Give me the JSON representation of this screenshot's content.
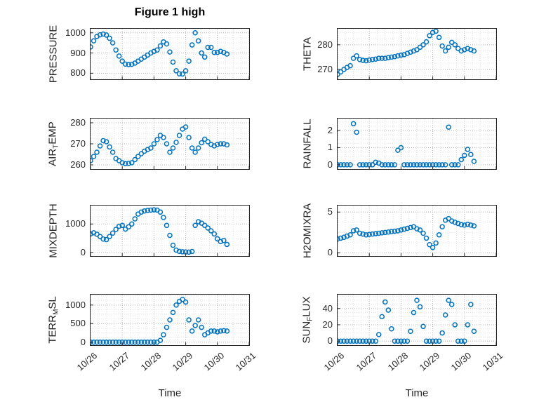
{
  "figure": {
    "title": "Figure 1 high",
    "xlabel": "Time"
  },
  "style": {
    "marker_color": "#0072BD",
    "axis_color": "#262626",
    "grid_major_color": "#b5b5b5",
    "grid_minor_color": "#e2e2e2",
    "background": "#ffffff"
  },
  "axes": {
    "xlim": [
      0,
      5
    ],
    "x_tick_values": [
      0,
      1,
      2,
      3,
      4,
      5
    ],
    "x_ticks": [
      "10/26",
      "10/27",
      "10/28",
      "10/29",
      "10/30",
      "10/31"
    ],
    "x_base": [
      0,
      0.1,
      0.2,
      0.3,
      0.4,
      0.5,
      0.6,
      0.7,
      0.8,
      0.9,
      1.0,
      1.1,
      1.2,
      1.3,
      1.4,
      1.5,
      1.6,
      1.7,
      1.8,
      1.9,
      2.0,
      2.1,
      2.2,
      2.3,
      2.4,
      2.5,
      2.6,
      2.7,
      2.8,
      2.9,
      3.0,
      3.1,
      3.2,
      3.3,
      3.4,
      3.5,
      3.6,
      3.7,
      3.8,
      3.9,
      4.0,
      4.1,
      4.2,
      4.3
    ]
  },
  "chart_data": [
    {
      "type": "scatter",
      "name": "PRESSURE",
      "label_parts": [
        {
          "text": "PRESSURE"
        }
      ],
      "row": 0,
      "col": 0,
      "yticks": [
        800,
        900,
        1000
      ],
      "ylim": [
        770,
        1020
      ],
      "y": [
        930,
        960,
        982,
        990,
        994,
        989,
        973,
        950,
        915,
        885,
        860,
        845,
        843,
        844,
        850,
        860,
        870,
        880,
        890,
        900,
        908,
        915,
        935,
        955,
        945,
        905,
        855,
        812,
        797,
        796,
        812,
        860,
        940,
        1000,
        960,
        900,
        880,
        928,
        928,
        903,
        903,
        908,
        903,
        895
      ]
    },
    {
      "type": "scatter",
      "name": "THETA",
      "label_parts": [
        {
          "text": "THETA"
        }
      ],
      "row": 0,
      "col": 1,
      "yticks": [
        270,
        280
      ],
      "ylim": [
        266,
        286.5
      ],
      "y": [
        268,
        269,
        270,
        270.8,
        271.5,
        274.5,
        275.5,
        274,
        273.7,
        273.5,
        273.8,
        274,
        274.2,
        274.5,
        274.5,
        274.5,
        274.8,
        275,
        275.2,
        275.5,
        275.8,
        276,
        276.5,
        277,
        277.5,
        278,
        279,
        280,
        281.2,
        283.7,
        285,
        285.5,
        283,
        279.5,
        277.5,
        279,
        281,
        280,
        278.5,
        277.5,
        278,
        278.5,
        278,
        277.5
      ]
    },
    {
      "type": "scatter",
      "name": "AIR_TEMP",
      "label_parts": [
        {
          "text": "AIR"
        },
        {
          "text": "T",
          "sub": true
        },
        {
          "text": "EMP"
        }
      ],
      "row": 1,
      "col": 0,
      "yticks": [
        260,
        270,
        280
      ],
      "ylim": [
        258,
        282
      ],
      "y": [
        262,
        264,
        266,
        269,
        271.5,
        271,
        268.5,
        266,
        263,
        262,
        261,
        260.6,
        260.7,
        261,
        262.5,
        264,
        265.3,
        266.5,
        267.3,
        268,
        270,
        272,
        274,
        273,
        270,
        266,
        268,
        270.7,
        274,
        277,
        278,
        273,
        268,
        266,
        268,
        270.5,
        272.2,
        271,
        269.7,
        269,
        269.7,
        270,
        270,
        269.5
      ]
    },
    {
      "type": "scatter",
      "name": "RAINFALL",
      "label_parts": [
        {
          "text": "RAINFALL"
        }
      ],
      "row": 1,
      "col": 1,
      "yticks": [
        0,
        1,
        2
      ],
      "ylim": [
        -0.25,
        2.7
      ],
      "y": [
        0,
        0,
        0,
        0,
        0,
        2.4,
        1.9,
        0,
        0,
        0,
        0,
        0,
        0.15,
        0.1,
        0,
        0,
        0,
        0,
        0,
        0.85,
        1,
        0,
        0,
        0,
        0,
        0,
        0,
        0,
        0,
        0,
        0,
        0,
        0,
        0,
        0,
        2.2,
        0,
        0,
        0,
        0.3,
        0.55,
        0.9,
        0.6,
        0.2
      ]
    },
    {
      "type": "scatter",
      "name": "MIXDEPTH",
      "label_parts": [
        {
          "text": "MIXDEPTH"
        }
      ],
      "row": 2,
      "col": 0,
      "yticks": [
        0,
        1000
      ],
      "ylim": [
        -130,
        1650
      ],
      "y": [
        650,
        690,
        640,
        560,
        470,
        450,
        560,
        680,
        810,
        920,
        950,
        820,
        900,
        1000,
        1180,
        1350,
        1420,
        1460,
        1480,
        1490,
        1500,
        1490,
        1420,
        1230,
        950,
        600,
        250,
        80,
        35,
        20,
        15,
        10,
        30,
        950,
        1080,
        1030,
        950,
        860,
        760,
        650,
        480,
        380,
        420,
        280
      ]
    },
    {
      "type": "scatter",
      "name": "H2OMIXRA",
      "label_parts": [
        {
          "text": "H2OMIXRA"
        }
      ],
      "row": 2,
      "col": 1,
      "yticks": [
        0,
        5
      ],
      "ylim": [
        -0.4,
        5.8
      ],
      "y": [
        1.7,
        1.8,
        1.9,
        2.05,
        2.2,
        2.7,
        2.8,
        2.4,
        2.3,
        2.2,
        2.25,
        2.3,
        2.35,
        2.4,
        2.45,
        2.5,
        2.55,
        2.6,
        2.65,
        2.7,
        2.8,
        2.9,
        3,
        3.1,
        3.2,
        2.95,
        2.8,
        2.4,
        1.8,
        1,
        0.65,
        1.2,
        2.2,
        3.2,
        4,
        4.2,
        3.9,
        3.75,
        3.6,
        3.45,
        3.4,
        3.5,
        3.4,
        3.3
      ]
    },
    {
      "type": "scatter",
      "name": "TERR_MSL",
      "label_parts": [
        {
          "text": "TERR"
        },
        {
          "text": "M",
          "sub": true
        },
        {
          "text": "SL"
        }
      ],
      "row": 3,
      "col": 0,
      "yticks": [
        0,
        500,
        1000
      ],
      "ylim": [
        -80,
        1280
      ],
      "y": [
        0,
        0,
        0,
        0,
        0,
        0,
        0,
        0,
        0,
        0,
        0,
        0,
        0,
        0,
        0,
        0,
        0,
        0,
        0,
        0,
        0,
        0,
        50,
        200,
        400,
        600,
        800,
        1000,
        1100,
        1150,
        1080,
        600,
        300,
        450,
        600,
        400,
        200,
        250,
        300,
        300,
        280,
        300,
        310,
        300
      ]
    },
    {
      "type": "scatter",
      "name": "SUN_FLUX",
      "label_parts": [
        {
          "text": "SUN"
        },
        {
          "text": "F",
          "sub": true
        },
        {
          "text": "LUX"
        }
      ],
      "row": 3,
      "col": 1,
      "yticks": [
        0,
        20,
        40
      ],
      "ylim": [
        -5,
        57
      ],
      "y": [
        0,
        0,
        0,
        0,
        0,
        0,
        0,
        0,
        0,
        0,
        0,
        0,
        0,
        8,
        30,
        48,
        38,
        15,
        0,
        0,
        0,
        0,
        0,
        12,
        35,
        50,
        42,
        18,
        0,
        0,
        0,
        0,
        0,
        10,
        32,
        50,
        45,
        20,
        0,
        0,
        0,
        20,
        45,
        12
      ]
    }
  ]
}
